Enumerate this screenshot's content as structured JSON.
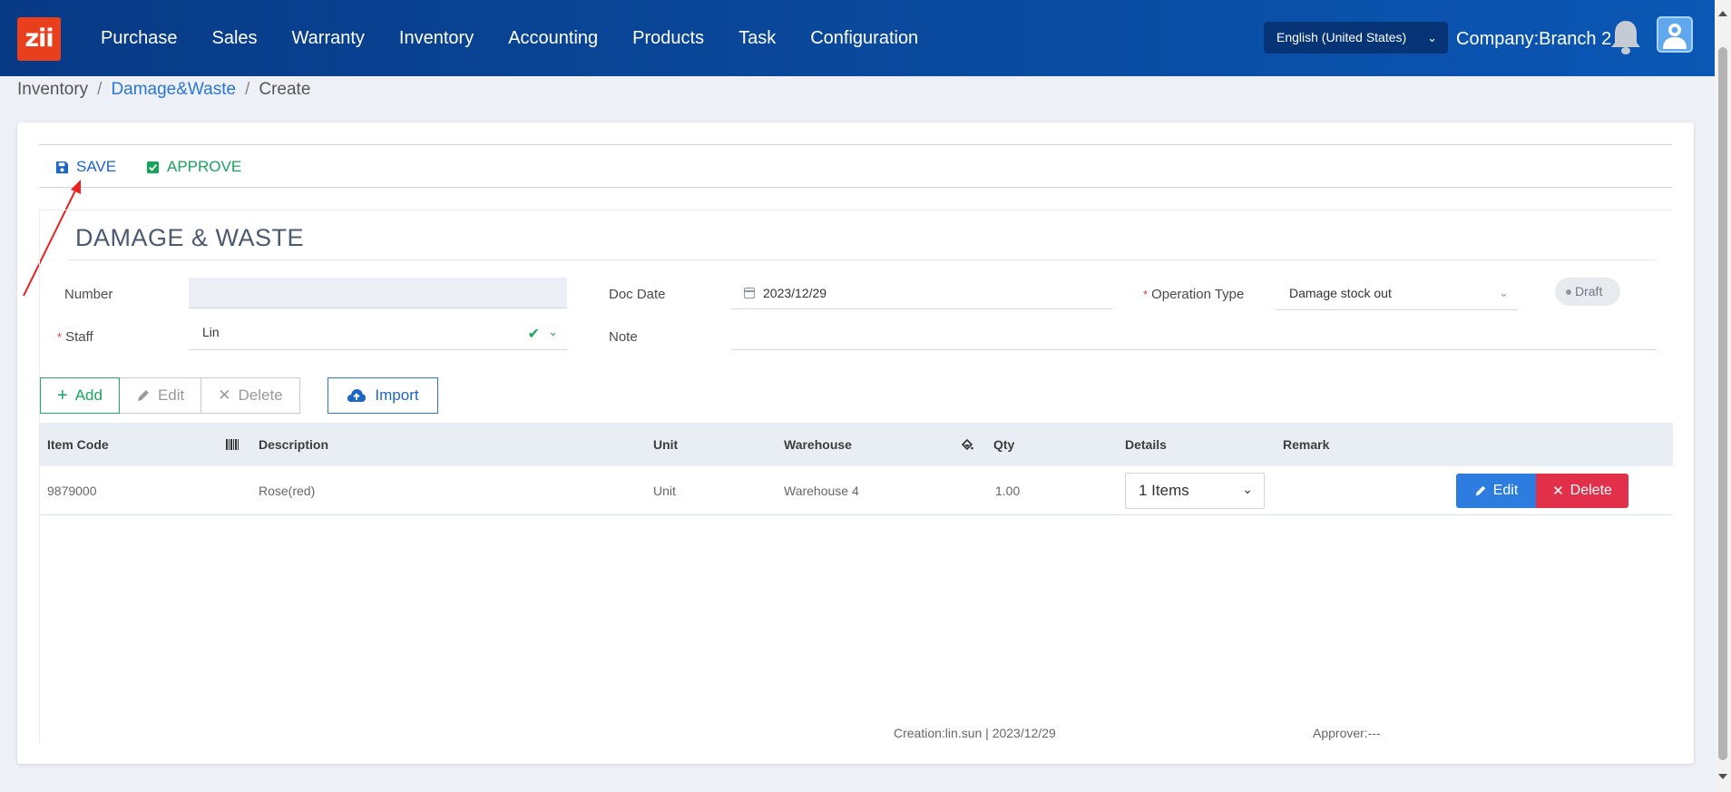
{
  "app": {
    "logo_text": "zii",
    "brand_color": "#e8401c",
    "nav_color": "#0a4a9e"
  },
  "nav": {
    "items": [
      "Purchase",
      "Sales",
      "Warranty",
      "Inventory",
      "Accounting",
      "Products",
      "Task",
      "Configuration"
    ]
  },
  "header": {
    "language": "English (United States)",
    "company": "Company:Branch 2",
    "notification_icon": "bell-icon",
    "user_icon": "user-avatar-icon"
  },
  "breadcrumb": {
    "root": "Inventory",
    "section": "Damage&Waste",
    "current": "Create",
    "separator": "/"
  },
  "toolbar": {
    "save_label": "SAVE",
    "save_icon": "floppy-disk-icon",
    "approve_label": "APPROVE",
    "approve_icon": "checkbox-icon"
  },
  "form": {
    "title": "DAMAGE & WASTE",
    "number_label": "Number",
    "number_value": "",
    "staff_label": "Staff",
    "staff_value": "Lin",
    "doc_date_label": "Doc Date",
    "doc_date_value": "2023/12/29",
    "note_label": "Note",
    "note_value": "",
    "operation_type_label": "Operation Type",
    "operation_type_value": "Damage stock out",
    "status": "Draft"
  },
  "grid_actions": {
    "add": "Add",
    "edit": "Edit",
    "delete": "Delete",
    "import": "Import"
  },
  "table": {
    "columns": {
      "item_code": "Item Code",
      "description": "Description",
      "unit": "Unit",
      "warehouse": "Warehouse",
      "qty": "Qty",
      "details": "Details",
      "remark": "Remark"
    },
    "rows": [
      {
        "item_code": "9879000",
        "description": "Rose(red)",
        "unit": "Unit",
        "warehouse": "Warehouse 4",
        "qty": "1.00",
        "details": "1 Items",
        "remark": ""
      }
    ],
    "row_edit": "Edit",
    "row_delete": "Delete"
  },
  "footer": {
    "creation": "Creation:lin.sun | 2023/12/29",
    "approver": "Approver:---"
  }
}
